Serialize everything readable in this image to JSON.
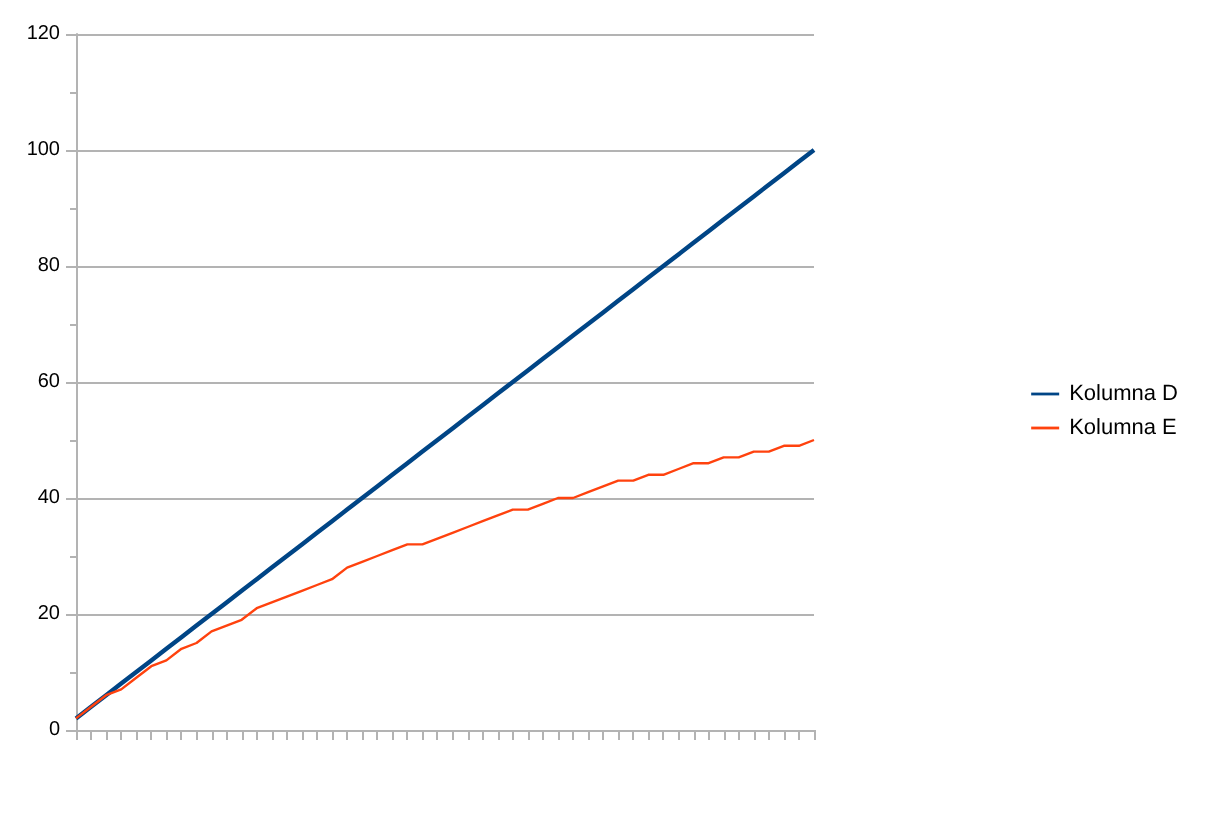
{
  "chart_data": {
    "type": "line",
    "categories": [
      null,
      null,
      null,
      null,
      null,
      null,
      null,
      null,
      null,
      null,
      null,
      null,
      null,
      null,
      null,
      null,
      null,
      null,
      null,
      null,
      null,
      null,
      null,
      null,
      null,
      null,
      null,
      null,
      null,
      null,
      null,
      null,
      null,
      null,
      null,
      null,
      null,
      null,
      null,
      null,
      null,
      null,
      null,
      null,
      null,
      null,
      null,
      null,
      null,
      null
    ],
    "series": [
      {
        "name": "Kolumna D",
        "color": "#004586",
        "values": [
          2,
          4,
          6,
          8,
          10,
          12,
          14,
          16,
          18,
          20,
          22,
          24,
          26,
          28,
          30,
          32,
          34,
          36,
          38,
          40,
          42,
          44,
          46,
          48,
          50,
          52,
          54,
          56,
          58,
          60,
          62,
          64,
          66,
          68,
          70,
          72,
          74,
          76,
          78,
          80,
          82,
          84,
          86,
          88,
          90,
          92,
          94,
          96,
          98,
          100
        ]
      },
      {
        "name": "Kolumna E",
        "color": "#ff420e",
        "values": [
          2,
          4,
          6,
          7,
          9,
          11,
          12,
          14,
          15,
          17,
          18,
          19,
          21,
          22,
          23,
          24,
          25,
          26,
          28,
          29,
          30,
          31,
          32,
          32,
          33,
          34,
          35,
          36,
          37,
          38,
          38,
          39,
          40,
          40,
          41,
          42,
          43,
          43,
          44,
          44,
          45,
          46,
          46,
          47,
          47,
          48,
          48,
          49,
          49,
          50
        ]
      }
    ],
    "ylim": [
      0,
      120
    ],
    "yticks": [
      0,
      20,
      40,
      60,
      80,
      100,
      120
    ],
    "grid": "y",
    "legend": "right",
    "marker": "none",
    "line_style": "solid"
  }
}
